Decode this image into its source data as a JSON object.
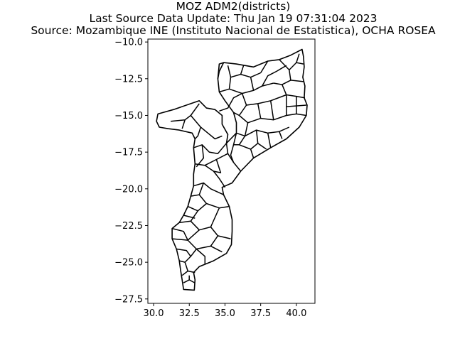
{
  "figure": {
    "title_lines": [
      "MOZ ADM2(districts)",
      "Last Source Data Update: Thu Jan 19 07:31:04 2023",
      "Source: Mozambique INE (Instituto Nacional de Estatistica), OCHA ROSEA"
    ]
  },
  "chart_data": {
    "type": "map",
    "title": "MOZ ADM2(districts)\nLast Source Data Update: Thu Jan 19 07:31:04 2023\nSource: Mozambique INE (Instituto Nacional de Estatistica), OCHA ROSEA",
    "xlim": [
      29.6,
      41.3
    ],
    "ylim": [
      -27.8,
      -9.8
    ],
    "x_ticks": [
      30.0,
      32.5,
      35.0,
      37.5,
      40.0
    ],
    "x_tick_labels": [
      "30.0",
      "32.5",
      "35.0",
      "37.5",
      "40.0"
    ],
    "y_ticks": [
      -10.0,
      -12.5,
      -15.0,
      -17.5,
      -20.0,
      -22.5,
      -25.0,
      -27.5
    ],
    "y_tick_labels": [
      "−10.0",
      "−12.5",
      "−15.0",
      "−17.5",
      "−20.0",
      "−22.5",
      "−25.0",
      "−27.5"
    ],
    "grid": false,
    "outline_color": "#000000",
    "fill_color": "#ffffff"
  }
}
